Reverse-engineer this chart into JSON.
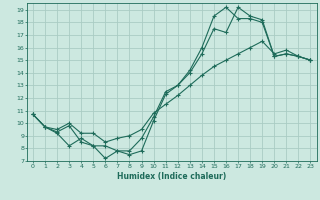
{
  "xlabel": "Humidex (Indice chaleur)",
  "bg_color": "#cce8e0",
  "grid_color": "#aaccc4",
  "line_color": "#1e6b5a",
  "xlim": [
    -0.5,
    23.5
  ],
  "ylim": [
    7,
    19.5
  ],
  "xticks": [
    0,
    1,
    2,
    3,
    4,
    5,
    6,
    7,
    8,
    9,
    10,
    11,
    12,
    13,
    14,
    15,
    16,
    17,
    18,
    19,
    20,
    21,
    22,
    23
  ],
  "yticks": [
    7,
    8,
    9,
    10,
    11,
    12,
    13,
    14,
    15,
    16,
    17,
    18,
    19
  ],
  "line1_x": [
    0,
    1,
    2,
    3,
    4,
    5,
    6,
    7,
    8,
    9,
    10,
    11,
    12,
    13,
    14,
    15,
    16,
    17,
    18,
    19,
    20,
    21,
    22,
    23
  ],
  "line1_y": [
    10.7,
    9.7,
    9.2,
    8.2,
    8.8,
    8.2,
    7.2,
    7.8,
    7.8,
    8.8,
    10.5,
    12.5,
    13.0,
    14.0,
    15.5,
    17.5,
    17.2,
    19.2,
    18.5,
    18.2,
    15.3,
    15.5,
    15.3,
    15.0
  ],
  "line2_x": [
    0,
    1,
    2,
    3,
    4,
    5,
    6,
    7,
    8,
    9,
    10,
    11,
    12,
    13,
    14,
    15,
    16,
    17,
    18,
    19,
    20,
    21,
    22,
    23
  ],
  "line2_y": [
    10.7,
    9.7,
    9.3,
    9.8,
    8.5,
    8.2,
    8.2,
    7.8,
    7.5,
    7.8,
    10.2,
    12.3,
    13.0,
    14.2,
    16.0,
    18.5,
    19.2,
    18.3,
    18.3,
    18.0,
    15.3,
    15.5,
    15.3,
    15.0
  ],
  "line3_x": [
    0,
    1,
    2,
    3,
    4,
    5,
    6,
    7,
    8,
    9,
    10,
    11,
    12,
    13,
    14,
    15,
    16,
    17,
    18,
    19,
    20,
    21,
    22,
    23
  ],
  "line3_y": [
    10.7,
    9.7,
    9.5,
    10.0,
    9.2,
    9.2,
    8.5,
    8.8,
    9.0,
    9.5,
    10.8,
    11.5,
    12.2,
    13.0,
    13.8,
    14.5,
    15.0,
    15.5,
    16.0,
    16.5,
    15.5,
    15.8,
    15.3,
    15.0
  ]
}
